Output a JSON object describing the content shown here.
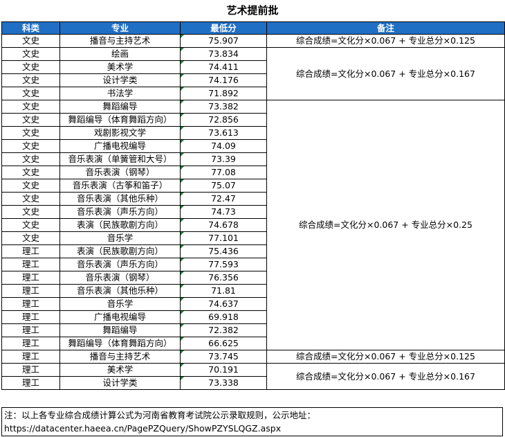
{
  "title": "艺术提前批",
  "headers": [
    "科类",
    "专业",
    "最低分",
    "备注"
  ],
  "rows": [
    {
      "category": "文史",
      "major": "播音与主持艺术",
      "score": "75.907"
    },
    {
      "category": "文史",
      "major": "绘画",
      "score": "73.834"
    },
    {
      "category": "文史",
      "major": "美术学",
      "score": "74.411"
    },
    {
      "category": "文史",
      "major": "设计学类",
      "score": "74.176"
    },
    {
      "category": "文史",
      "major": "书法学",
      "score": "71.892"
    },
    {
      "category": "文史",
      "major": "舞蹈编导",
      "score": "73.382"
    },
    {
      "category": "文史",
      "major": "舞蹈编导（体育舞蹈方向）",
      "score": "72.856"
    },
    {
      "category": "文史",
      "major": "戏剧影视文学",
      "score": "73.613"
    },
    {
      "category": "文史",
      "major": "广播电视编导",
      "score": "74.09"
    },
    {
      "category": "文史",
      "major": "音乐表演（单簧管和大号）",
      "score": "73.39"
    },
    {
      "category": "文史",
      "major": "音乐表演（钢琴）",
      "score": "77.08"
    },
    {
      "category": "文史",
      "major": "音乐表演（古筝和笛子）",
      "score": "75.07"
    },
    {
      "category": "文史",
      "major": "音乐表演（其他乐种）",
      "score": "72.47"
    },
    {
      "category": "文史",
      "major": "音乐表演（声乐方向）",
      "score": "74.73"
    },
    {
      "category": "文史",
      "major": "表演（民族歌剧方向）",
      "score": "74.678"
    },
    {
      "category": "文史",
      "major": "音乐学",
      "score": "77.101"
    },
    {
      "category": "理工",
      "major": "表演（民族歌剧方向）",
      "score": "75.436"
    },
    {
      "category": "理工",
      "major": "音乐表演（声乐方向）",
      "score": "77.593"
    },
    {
      "category": "理工",
      "major": "音乐表演（钢琴）",
      "score": "76.356"
    },
    {
      "category": "理工",
      "major": "音乐表演（其他乐种）",
      "score": "71.81"
    },
    {
      "category": "理工",
      "major": "音乐学",
      "score": "74.637"
    },
    {
      "category": "理工",
      "major": "广播电视编导",
      "score": "69.918"
    },
    {
      "category": "理工",
      "major": "舞蹈编导",
      "score": "72.382"
    },
    {
      "category": "理工",
      "major": "舞蹈编导（体育舞蹈方向）",
      "score": "66.625"
    },
    {
      "category": "理工",
      "major": "播音与主持艺术",
      "score": "73.745"
    },
    {
      "category": "理工",
      "major": "美术学",
      "score": "70.191"
    },
    {
      "category": "理工",
      "major": "设计学类",
      "score": "73.338"
    }
  ],
  "notes": [
    {
      "text": "综合成绩=文化分×0.067 + 专业总分×0.125",
      "start_row": 0,
      "rowspan": 1
    },
    {
      "text": "综合成绩=文化分×0.067 + 专业总分×0.167",
      "start_row": 1,
      "rowspan": 4
    },
    {
      "text": "综合成绩=文化分×0.067 + 专业总分×0.25",
      "start_row": 5,
      "rowspan": 19
    },
    {
      "text": "综合成绩=文化分×0.067 + 专业总分×0.125",
      "start_row": 24,
      "rowspan": 1
    },
    {
      "text": "综合成绩=文化分×0.067 + 专业总分×0.167",
      "start_row": 25,
      "rowspan": 2
    }
  ],
  "footer": {
    "line1": "注：以上各专业综合成绩计算公式为河南省教育考试院公示录取规则，公示地址：",
    "line2": "https://datacenter.haeea.cn/PagePZQuery/ShowPZYSLQGZ.aspx"
  },
  "colors": {
    "header_bg": "#1f6fc4",
    "header_text": "#ffffff",
    "corner_mark": "#1e7b34"
  }
}
